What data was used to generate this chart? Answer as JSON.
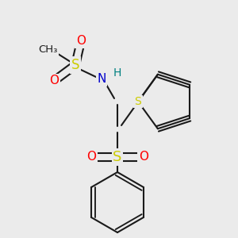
{
  "bg_color": "#ebebeb",
  "line_color": "#1a1a1a",
  "bw": 1.5,
  "figsize": [
    3.0,
    3.0
  ],
  "dpi": 100,
  "colors": {
    "S": "#cccc00",
    "O": "#ff0000",
    "N": "#0000cc",
    "H": "#008080",
    "C": "#1a1a1a"
  }
}
